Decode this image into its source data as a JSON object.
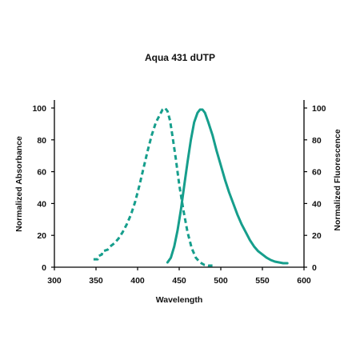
{
  "chart_data": {
    "type": "line",
    "title": "Aqua 431 dUTP",
    "xlabel": "Wavelength",
    "ylabel_left": "Normalized Absorbance",
    "ylabel_right": "Normalized Fluorescence",
    "xlim": [
      300,
      600
    ],
    "ylim": [
      0,
      100
    ],
    "x_ticks": [
      300,
      350,
      400,
      450,
      500,
      550,
      600
    ],
    "y_ticks": [
      0,
      20,
      40,
      60,
      80,
      100
    ],
    "grid": false,
    "legend": "none",
    "series": [
      {
        "style": "dashed",
        "color": "#169e8c",
        "axis": "left",
        "points": [
          [
            347,
            5
          ],
          [
            352,
            5
          ],
          [
            353,
            7
          ],
          [
            357,
            8
          ],
          [
            358,
            10
          ],
          [
            364,
            11
          ],
          [
            367,
            13
          ],
          [
            372,
            15
          ],
          [
            377,
            18
          ],
          [
            382,
            22
          ],
          [
            387,
            27
          ],
          [
            392,
            33
          ],
          [
            397,
            41
          ],
          [
            402,
            51
          ],
          [
            407,
            62
          ],
          [
            412,
            73
          ],
          [
            417,
            83
          ],
          [
            422,
            91
          ],
          [
            427,
            96
          ],
          [
            430,
            99
          ],
          [
            433,
            100
          ],
          [
            436,
            98
          ],
          [
            439,
            92
          ],
          [
            442,
            82
          ],
          [
            446,
            68
          ],
          [
            450,
            52
          ],
          [
            455,
            36
          ],
          [
            460,
            22
          ],
          [
            465,
            12
          ],
          [
            470,
            6
          ],
          [
            475,
            3
          ],
          [
            480,
            1.5
          ],
          [
            485,
            1
          ],
          [
            490,
            1
          ]
        ]
      },
      {
        "style": "solid",
        "color": "#169e8c",
        "axis": "right",
        "points": [
          [
            436,
            3
          ],
          [
            440,
            6
          ],
          [
            444,
            13
          ],
          [
            448,
            23
          ],
          [
            452,
            36
          ],
          [
            456,
            51
          ],
          [
            460,
            66
          ],
          [
            464,
            80
          ],
          [
            468,
            91
          ],
          [
            472,
            97
          ],
          [
            475,
            99
          ],
          [
            478,
            99
          ],
          [
            481,
            97
          ],
          [
            485,
            91
          ],
          [
            490,
            83
          ],
          [
            495,
            73
          ],
          [
            500,
            64
          ],
          [
            505,
            55
          ],
          [
            510,
            47
          ],
          [
            515,
            40
          ],
          [
            520,
            33
          ],
          [
            525,
            27
          ],
          [
            530,
            22
          ],
          [
            535,
            17
          ],
          [
            540,
            13
          ],
          [
            545,
            10
          ],
          [
            550,
            8
          ],
          [
            555,
            6
          ],
          [
            560,
            4.5
          ],
          [
            565,
            3.5
          ],
          [
            570,
            3
          ],
          [
            575,
            2.5
          ],
          [
            580,
            2.5
          ]
        ]
      }
    ]
  }
}
